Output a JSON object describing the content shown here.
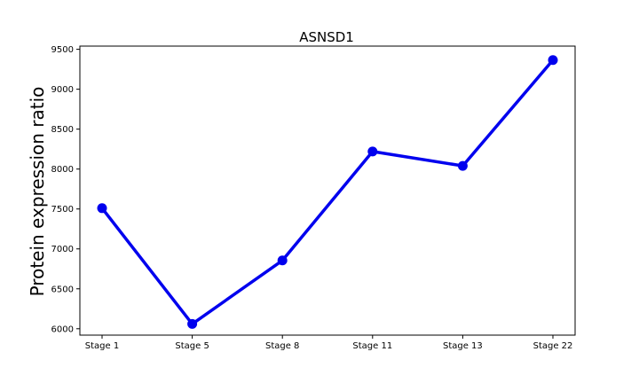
{
  "chart_data": {
    "type": "line",
    "title": "ASNSD1",
    "xlabel": "",
    "ylabel": "Protein expression ratio",
    "categories": [
      "Stage 1",
      "Stage 5",
      "Stage 8",
      "Stage 11",
      "Stage 13",
      "Stage 22"
    ],
    "series": [
      {
        "values": [
          7510,
          6060,
          6855,
          8220,
          8040,
          9365
        ],
        "color": "#0000ee",
        "marker": "circle"
      }
    ],
    "ylim": [
      5920,
      9540
    ],
    "yticks": [
      6000,
      6500,
      7000,
      7500,
      8000,
      8500,
      9000,
      9500
    ],
    "grid": false,
    "legend": "none"
  }
}
